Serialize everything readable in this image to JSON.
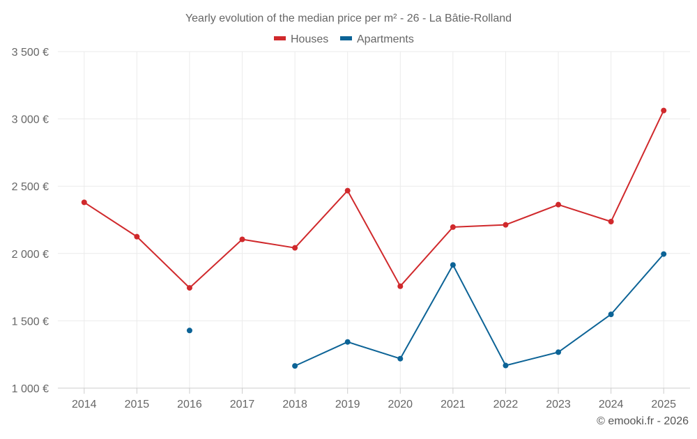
{
  "chart_data": {
    "type": "line",
    "title": "Yearly evolution of the median price per m² - 26 - La Bâtie-Rolland",
    "credit": "© emooki.fr - 2026",
    "categories": [
      "2014",
      "2015",
      "2016",
      "2017",
      "2018",
      "2019",
      "2020",
      "2021",
      "2022",
      "2023",
      "2024",
      "2025"
    ],
    "y_ticks": [
      1000,
      1500,
      2000,
      2500,
      3000,
      3500
    ],
    "y_tick_labels": [
      "1 000 €",
      "1 500 €",
      "2 000 €",
      "2 500 €",
      "3 000 €",
      "3 500 €"
    ],
    "ylim": [
      1000,
      3500
    ],
    "grid": true,
    "legend_position": "top-center",
    "series": [
      {
        "name": "Houses",
        "color": "#d0292c",
        "values": [
          2380,
          2125,
          1745,
          2105,
          2042,
          2467,
          1757,
          2196,
          2213,
          2363,
          2237,
          3062
        ]
      },
      {
        "name": "Apartments",
        "color": "#0c6396",
        "values": [
          null,
          null,
          1428,
          null,
          1165,
          1343,
          1219,
          1915,
          1168,
          1267,
          1548,
          1996
        ]
      }
    ]
  }
}
